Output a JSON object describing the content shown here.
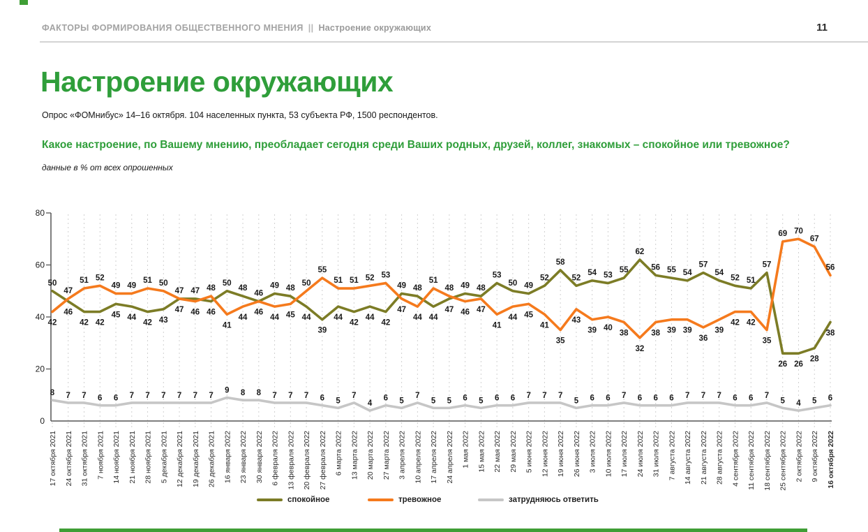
{
  "header": {
    "breadcrumb_left": "ФАКТОРЫ ФОРМИРОВАНИЯ ОБЩЕСТВЕННОГО МНЕНИЯ",
    "separator": "||",
    "breadcrumb_right": "Настроение окружающих",
    "page_number": "11"
  },
  "title": "Настроение окружающих",
  "subtitle": "Опрос «ФОМнибус» 14–16 октября. 104 населенных пункта, 53 субъекта РФ, 1500 респондентов.",
  "question": "Какое настроение, по Вашему мнению, преобладает сегодня среди Ваших родных, друзей, коллег, знакомых – спокойное или тревожное?",
  "note": "данные в % от всех опрошенных",
  "colors": {
    "accent_green": "#2f9e3a",
    "series_calm": "#7c7c26",
    "series_anxious": "#f57a1d",
    "series_undecided": "#c6c6c6"
  },
  "chart_data": {
    "type": "line",
    "title": "",
    "xlabel": "",
    "ylabel": "",
    "ylim": [
      0,
      80
    ],
    "yticks": [
      0,
      20,
      40,
      60,
      80
    ],
    "grid": "vertical-dashed",
    "legend_position": "bottom",
    "categories": [
      "17 октября 2021",
      "24 октября 2021",
      "31 октября 2021",
      "7 ноября 2021",
      "14 ноября 2021",
      "21 ноября 2021",
      "28 ноября 2021",
      "5 декабря 2021",
      "12 декабря 2021",
      "19 декабря 2021",
      "26 декабря 2021",
      "16 января 2022",
      "23 января 2022",
      "30 января 2022",
      "6 февраля 2022",
      "13 февраля 2022",
      "20 февраля 2022",
      "27 февраля 2022",
      "6 марта 2022",
      "13 марта 2022",
      "20 марта 2022",
      "27 марта 2022",
      "3 апреля 2022",
      "10 апреля 2022",
      "17 апреля 2022",
      "24 апреля 2022",
      "1 мая 2022",
      "15 мая 2022",
      "22 мая 2022",
      "29 мая 2022",
      "5 июня 2022",
      "12 июня 2022",
      "19 июня 2022",
      "26 июня 2022",
      "3 июля 2022",
      "10 июля 2022",
      "17 июля 2022",
      "24 июля 2022",
      "31 июля 2022",
      "7 августа 2022",
      "14 августа 2022",
      "21 августа 2022",
      "28 августа 2022",
      "4 сентября 2022",
      "11 сентября 2022",
      "18 сентября 2022",
      "25 сентября 2022",
      "2 октября 2022",
      "9 октября 2022",
      "16 октября 2022"
    ],
    "series": [
      {
        "name": "спокойное",
        "color": "#7c7c26",
        "values": [
          50,
          46,
          42,
          42,
          45,
          44,
          42,
          43,
          47,
          47,
          46,
          50,
          48,
          46,
          49,
          48,
          44,
          39,
          44,
          42,
          44,
          42,
          49,
          48,
          44,
          47,
          49,
          48,
          53,
          50,
          49,
          52,
          58,
          52,
          54,
          53,
          55,
          62,
          56,
          55,
          54,
          57,
          54,
          52,
          51,
          57,
          26,
          26,
          28,
          38
        ]
      },
      {
        "name": "тревожное",
        "color": "#f57a1d",
        "values": [
          42,
          47,
          51,
          52,
          49,
          49,
          51,
          50,
          47,
          46,
          48,
          41,
          44,
          46,
          44,
          45,
          50,
          55,
          51,
          51,
          52,
          53,
          47,
          44,
          51,
          48,
          46,
          47,
          41,
          44,
          45,
          41,
          35,
          43,
          39,
          40,
          38,
          32,
          38,
          39,
          39,
          36,
          39,
          42,
          42,
          35,
          69,
          70,
          67,
          56
        ]
      },
      {
        "name": "затрудняюсь ответить",
        "color": "#c6c6c6",
        "values": [
          8,
          7,
          7,
          6,
          6,
          7,
          7,
          7,
          7,
          7,
          7,
          9,
          8,
          8,
          7,
          7,
          7,
          6,
          5,
          7,
          4,
          6,
          5,
          7,
          5,
          5,
          6,
          5,
          6,
          6,
          7,
          7,
          7,
          5,
          6,
          6,
          7,
          6,
          6,
          6,
          7,
          7,
          7,
          6,
          6,
          7,
          5,
          4,
          5,
          6
        ]
      }
    ]
  },
  "legend": [
    {
      "label": "спокойное",
      "color": "#7c7c26"
    },
    {
      "label": "тревожное",
      "color": "#f57a1d"
    },
    {
      "label": "затрудняюсь ответить",
      "color": "#c6c6c6"
    }
  ]
}
